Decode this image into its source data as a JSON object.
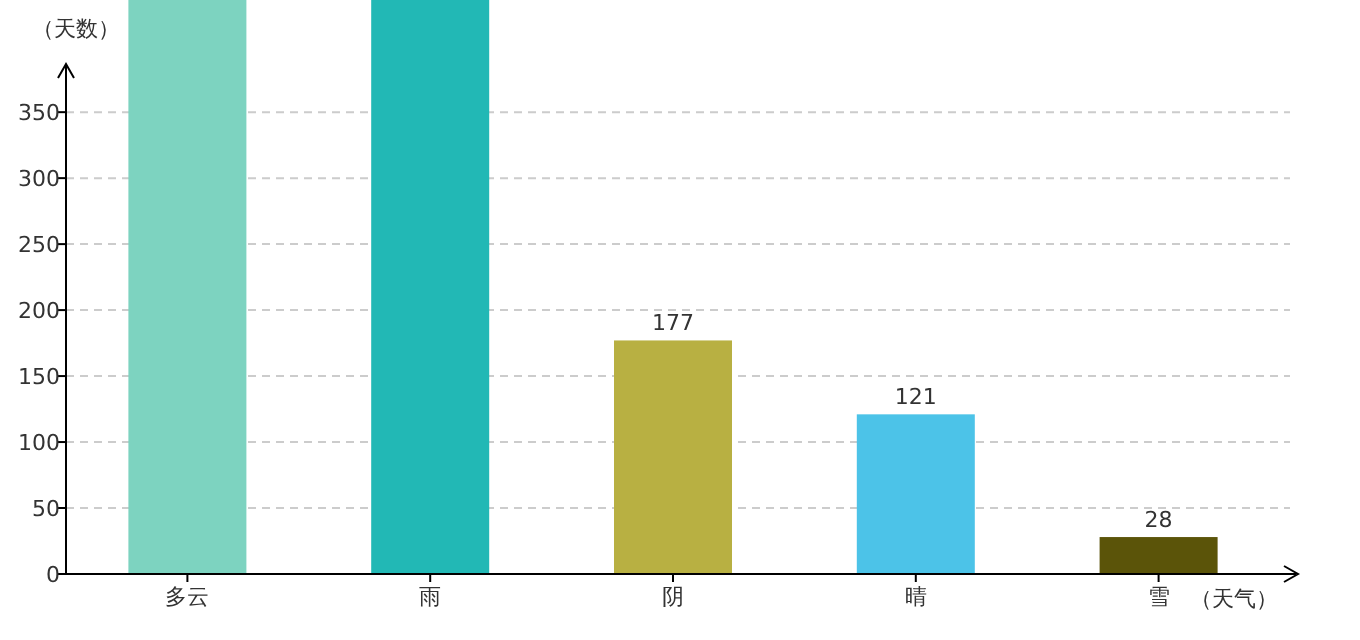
{
  "chart_data": {
    "type": "bar",
    "ylabel": "（天数）",
    "xlabel": "（天气）",
    "categories": [
      "多云",
      "雨",
      "阴",
      "晴",
      "雪"
    ],
    "values": [
      435,
      435,
      177,
      121,
      28
    ],
    "value_labels": [
      null,
      null,
      "177",
      "121",
      "28"
    ],
    "colors": [
      "#7dd3c0",
      "#22b8b5",
      "#b8b042",
      "#4cc3e8",
      "#5b5409"
    ],
    "ylim": [
      0,
      435
    ],
    "yticks": [
      0,
      50,
      100,
      150,
      200,
      250,
      300,
      350
    ],
    "grid": "y"
  }
}
